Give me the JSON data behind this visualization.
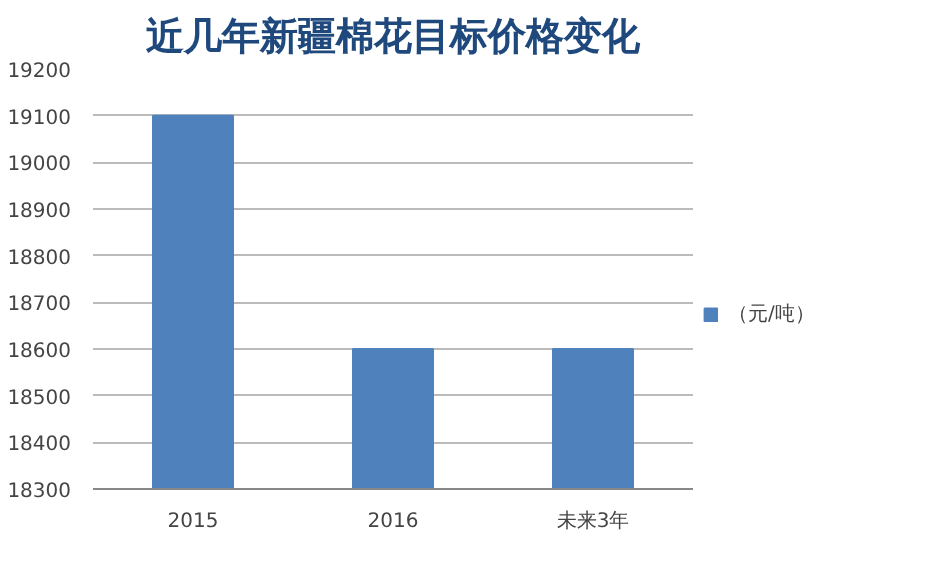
{
  "chart_data": {
    "type": "bar",
    "title": "近几年新疆棉花目标价格变化",
    "categories": [
      "2015",
      "2016",
      "未来3年"
    ],
    "series": [
      {
        "name": "（元/吨）",
        "color": "#4f81bd",
        "values": [
          19100,
          18600,
          18600
        ]
      }
    ],
    "ylim": [
      18300,
      19200
    ],
    "yticks": [
      18300,
      18400,
      18500,
      18600,
      18700,
      18800,
      18900,
      19000,
      19100,
      19200
    ],
    "grid": "y",
    "legend": "right"
  }
}
